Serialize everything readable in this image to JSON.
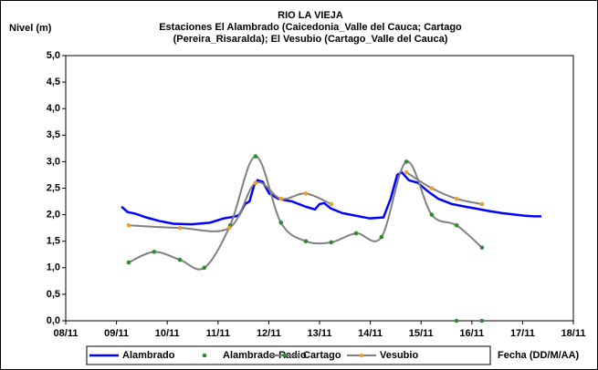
{
  "chart_data": {
    "type": "line",
    "title": "RIO LA VIEJA",
    "subtitle": [
      "Estaciones El Alambrado (Caicedonia_Valle del Cauca; Cartago",
      "(Pereira_Risaralda);  El Vesubio (Cartago_Valle del Cauca)"
    ],
    "y_label": "Nivel (m)",
    "x_label": "Fecha (DD/M/AA)",
    "xlim": [
      8,
      18
    ],
    "xticks": [
      {
        "value": 8,
        "label": "08/11"
      },
      {
        "value": 9,
        "label": "09/11"
      },
      {
        "value": 10,
        "label": "10/11"
      },
      {
        "value": 11,
        "label": "11/11"
      },
      {
        "value": 12,
        "label": "12/11"
      },
      {
        "value": 13,
        "label": "13/11"
      },
      {
        "value": 14,
        "label": "14/11"
      },
      {
        "value": 15,
        "label": "15/11"
      },
      {
        "value": 16,
        "label": "16/11"
      },
      {
        "value": 17,
        "label": "17/11"
      },
      {
        "value": 18,
        "label": "18/11"
      }
    ],
    "ylim": [
      0,
      5
    ],
    "yticks": [
      {
        "value": 0,
        "label": "0,0"
      },
      {
        "value": 0.5,
        "label": "0,5"
      },
      {
        "value": 1,
        "label": "1,0"
      },
      {
        "value": 1.5,
        "label": "1,5"
      },
      {
        "value": 2,
        "label": "2,0"
      },
      {
        "value": 2.5,
        "label": "2,5"
      },
      {
        "value": 3,
        "label": "3,0"
      },
      {
        "value": 3.5,
        "label": "3,5"
      },
      {
        "value": 4,
        "label": "4,0"
      },
      {
        "value": 4.5,
        "label": "4,5"
      },
      {
        "value": 5,
        "label": "5,0"
      }
    ],
    "grid": false,
    "legend": "bottom",
    "series": [
      {
        "name": "Alambrado",
        "line_color": "#0000ff",
        "smooth": false,
        "x": [
          9.1,
          9.22,
          9.37,
          9.58,
          9.85,
          10.12,
          10.48,
          10.84,
          11.11,
          11.24,
          11.35,
          11.42,
          11.53,
          11.62,
          11.71,
          11.78,
          11.88,
          12.01,
          12.19,
          12.46,
          12.73,
          12.91,
          13.0,
          13.09,
          13.22,
          13.45,
          13.72,
          13.99,
          14.26,
          14.4,
          14.53,
          14.62,
          14.76,
          14.94,
          15.12,
          15.34,
          15.61,
          15.88,
          16.06,
          16.33,
          16.6,
          16.87,
          17.05,
          17.23,
          17.37
        ],
        "values": [
          2.15,
          2.05,
          2.02,
          1.95,
          1.88,
          1.83,
          1.82,
          1.85,
          1.93,
          1.95,
          1.97,
          2.0,
          2.2,
          2.25,
          2.55,
          2.65,
          2.62,
          2.4,
          2.3,
          2.25,
          2.15,
          2.1,
          2.2,
          2.22,
          2.12,
          2.03,
          1.98,
          1.93,
          1.95,
          2.3,
          2.75,
          2.8,
          2.65,
          2.6,
          2.45,
          2.3,
          2.2,
          2.15,
          2.12,
          2.07,
          2.03,
          2.0,
          1.98,
          1.97,
          1.97
        ]
      },
      {
        "name": "Alambrado-Radio",
        "marker_color": "#2e8b2e",
        "x": [
          15.7,
          16.2
        ],
        "values": [
          0,
          0
        ]
      },
      {
        "name": "Cartago",
        "line_color": "#808080",
        "marker_color": "#2e8b2e",
        "smooth": true,
        "x": [
          9.24,
          9.74,
          10.25,
          10.73,
          11.24,
          11.74,
          12.24,
          12.73,
          13.23,
          13.72,
          14.22,
          14.71,
          15.21,
          15.7,
          16.2
        ],
        "values": [
          1.1,
          1.3,
          1.15,
          1.0,
          1.8,
          3.1,
          1.85,
          1.5,
          1.48,
          1.65,
          1.58,
          3.0,
          2.0,
          1.8,
          1.38
        ]
      },
      {
        "name": "Vesubio",
        "line_color": "#808080",
        "marker_color": "#f39c2b",
        "smooth": true,
        "x": [
          9.24,
          10.25,
          11.22,
          11.74,
          12.24,
          12.73,
          13.23,
          14.0,
          14.71,
          15.21,
          15.7,
          16.2
        ],
        "values": [
          1.8,
          1.75,
          1.75,
          2.6,
          2.3,
          2.4,
          2.2,
          null,
          2.8,
          2.5,
          2.3,
          2.2
        ]
      }
    ]
  }
}
